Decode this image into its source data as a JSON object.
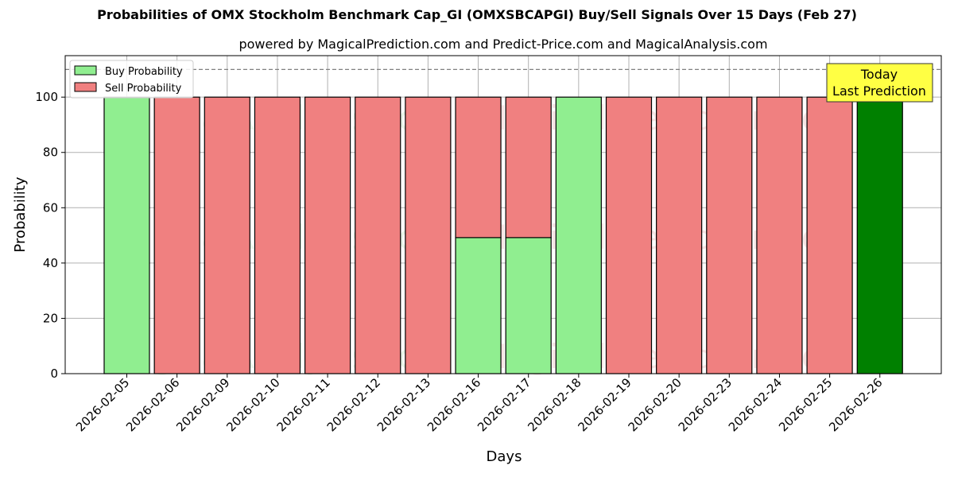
{
  "title": "Probabilities of OMX Stockholm Benchmark Cap_GI (OMXSBCAPGI) Buy/Sell Signals Over 15 Days (Feb 27)",
  "subtitle": "powered by MagicalPrediction.com and Predict-Price.com and MagicalAnalysis.com",
  "watermarks": [
    "MagicalAnalysis.com",
    "MagicalPrediction.com"
  ],
  "annotation": {
    "line1": "Today",
    "line2": "Last Prediction"
  },
  "colors": {
    "buy": "#90ee90",
    "sell": "#f08080",
    "today": "#008000",
    "annotation_bg": "#ffff44"
  },
  "chart_data": {
    "type": "bar",
    "stacked": true,
    "xlabel": "Days",
    "ylabel": "Probability",
    "ylim": [
      0,
      115
    ],
    "yticks": [
      0,
      20,
      40,
      60,
      80,
      100
    ],
    "reference_line": 110,
    "grid": true,
    "legend_position": "top-left",
    "categories": [
      "2026-02-05",
      "2026-02-06",
      "2026-02-09",
      "2026-02-10",
      "2026-02-11",
      "2026-02-12",
      "2026-02-13",
      "2026-02-16",
      "2026-02-17",
      "2026-02-18",
      "2026-02-19",
      "2026-02-20",
      "2026-02-23",
      "2026-02-24",
      "2026-02-25",
      "2026-02-26"
    ],
    "series": [
      {
        "name": "Buy Probability",
        "values": [
          100,
          0,
          0,
          0,
          0,
          0,
          0,
          49.2,
          49.2,
          100,
          0,
          0,
          0,
          0,
          0,
          100
        ]
      },
      {
        "name": "Sell Probability",
        "values": [
          0,
          100,
          100,
          100,
          100,
          100,
          100,
          50.8,
          50.8,
          0,
          100,
          100,
          100,
          100,
          100,
          0
        ]
      }
    ]
  }
}
